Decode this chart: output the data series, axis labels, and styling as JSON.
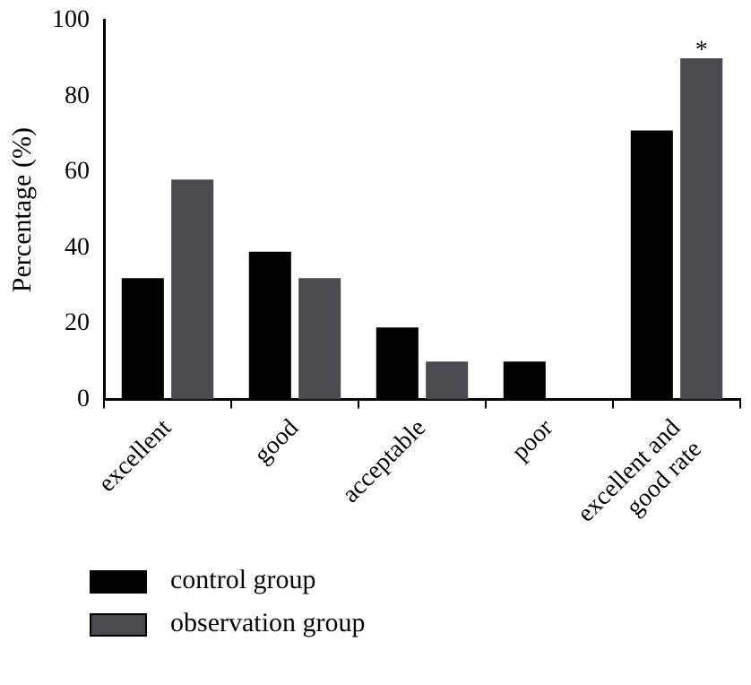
{
  "chart_data": {
    "type": "bar",
    "ylabel": "Percentage (%)",
    "categories": [
      "excellent",
      "good",
      "acceptable",
      "poor",
      "excellent and good rate"
    ],
    "series": [
      {
        "name": "control group",
        "color": "#000000",
        "values": [
          32,
          39,
          19,
          10,
          71
        ]
      },
      {
        "name": "observation group",
        "color": "#4a4b50",
        "values": [
          58,
          32,
          10,
          0,
          90
        ]
      }
    ],
    "ylim": [
      0,
      100
    ],
    "yticks": [
      0,
      20,
      40,
      60,
      80,
      100
    ],
    "grid": false,
    "legend": "bottom left",
    "annotations": [
      {
        "text": "*",
        "x": "excellent and good rate",
        "y": 90
      }
    ]
  }
}
